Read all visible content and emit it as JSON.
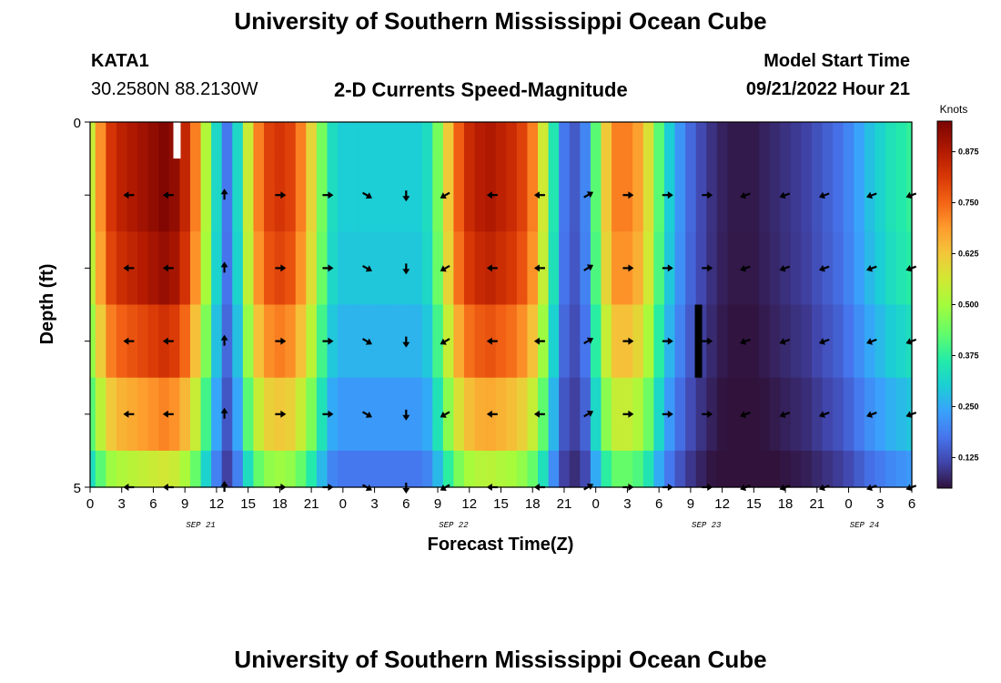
{
  "header": {
    "title": "University of Southern Mississippi Ocean Cube",
    "station_id": "KATA1",
    "coords": "30.2580N  88.2130W",
    "subtitle": "2-D Currents Speed-Magnitude",
    "start_label": "Model Start Time",
    "start_value": "09/21/2022 Hour 21"
  },
  "footer": {
    "title": "University of Southern Mississippi Ocean Cube"
  },
  "chart_data": {
    "type": "heatmap",
    "title": "2-D Currents Speed-Magnitude",
    "xlabel": "Forecast Time(Z)",
    "ylabel": "Depth (ft)",
    "colorbar_label": "Knots",
    "colorbar_ticks": [
      "0.125",
      "0.250",
      "0.375",
      "0.500",
      "0.625",
      "0.750",
      "0.875"
    ],
    "colorbar_range": [
      0.05,
      0.95
    ],
    "x_tick_labels": [
      "0",
      "3",
      "6",
      "9",
      "12",
      "15",
      "18",
      "21",
      "0",
      "3",
      "6",
      "9",
      "12",
      "15",
      "18",
      "21",
      "0",
      "3",
      "6",
      "9",
      "12",
      "15",
      "18",
      "21",
      "0",
      "3",
      "6"
    ],
    "x_range_hours": [
      0,
      78
    ],
    "day_labels": [
      {
        "label": "SEP 21",
        "hour": 10.5
      },
      {
        "label": "SEP 22",
        "hour": 34.5
      },
      {
        "label": "SEP 23",
        "hour": 58.5
      },
      {
        "label": "SEP 24",
        "hour": 73.5
      }
    ],
    "y_tick_labels": [
      "0",
      "5"
    ],
    "y_range_ft": [
      0,
      5
    ],
    "depth_levels_ft": [
      0,
      1,
      2,
      3,
      4,
      5
    ],
    "times_hours": [
      0,
      1,
      2,
      3,
      4,
      5,
      6,
      7,
      8,
      9,
      10,
      11,
      12,
      13,
      14,
      15,
      16,
      17,
      18,
      19,
      20,
      21,
      22,
      23,
      24,
      25,
      26,
      27,
      28,
      29,
      30,
      31,
      32,
      33,
      34,
      35,
      36,
      37,
      38,
      39,
      40,
      41,
      42,
      43,
      44,
      45,
      46,
      47,
      48,
      49,
      50,
      51,
      52,
      53,
      54,
      55,
      56,
      57,
      58,
      59,
      60,
      61,
      62,
      63,
      64,
      65,
      66,
      67,
      68,
      69,
      70,
      71,
      72,
      73,
      74,
      75,
      76,
      77,
      78
    ],
    "surface_speed_knots": [
      0.55,
      0.7,
      0.82,
      0.86,
      0.88,
      0.9,
      0.92,
      0.94,
      0.92,
      0.85,
      0.72,
      0.52,
      0.32,
      0.18,
      0.32,
      0.55,
      0.72,
      0.8,
      0.82,
      0.8,
      0.72,
      0.6,
      0.45,
      0.33,
      0.3,
      0.3,
      0.3,
      0.3,
      0.3,
      0.3,
      0.3,
      0.3,
      0.33,
      0.45,
      0.62,
      0.76,
      0.84,
      0.87,
      0.88,
      0.86,
      0.84,
      0.8,
      0.72,
      0.56,
      0.35,
      0.18,
      0.14,
      0.2,
      0.42,
      0.62,
      0.72,
      0.72,
      0.68,
      0.58,
      0.42,
      0.3,
      0.22,
      0.16,
      0.12,
      0.09,
      0.07,
      0.06,
      0.06,
      0.06,
      0.07,
      0.08,
      0.09,
      0.1,
      0.11,
      0.13,
      0.15,
      0.17,
      0.2,
      0.24,
      0.28,
      0.31,
      0.34,
      0.36,
      0.38
    ],
    "depth_factors": [
      1.0,
      1.0,
      0.97,
      0.88,
      0.76,
      0.6
    ],
    "missing_cells": [
      {
        "hour": 8.25,
        "depth_from_ft": 0,
        "depth_to_ft": 0.5,
        "color": "#ffffff"
      },
      {
        "hour": 57.75,
        "depth_from_ft": 2.5,
        "depth_to_ft": 3.5,
        "color": "#000000"
      }
    ],
    "vector_times_hours": [
      3.75,
      7.5,
      12.75,
      18.0,
      22.5,
      26.25,
      30.0,
      33.75,
      38.25,
      42.75,
      47.25,
      51.0,
      54.75,
      58.5,
      62.25,
      66.0,
      69.75,
      74.25,
      78.0
    ],
    "vector_directions_deg": [
      180,
      180,
      90,
      0,
      0,
      330,
      270,
      210,
      180,
      180,
      30,
      0,
      0,
      0,
      200,
      200,
      200,
      200,
      200
    ],
    "vector_depth_rows_ft": [
      1,
      2,
      3,
      4
    ]
  }
}
